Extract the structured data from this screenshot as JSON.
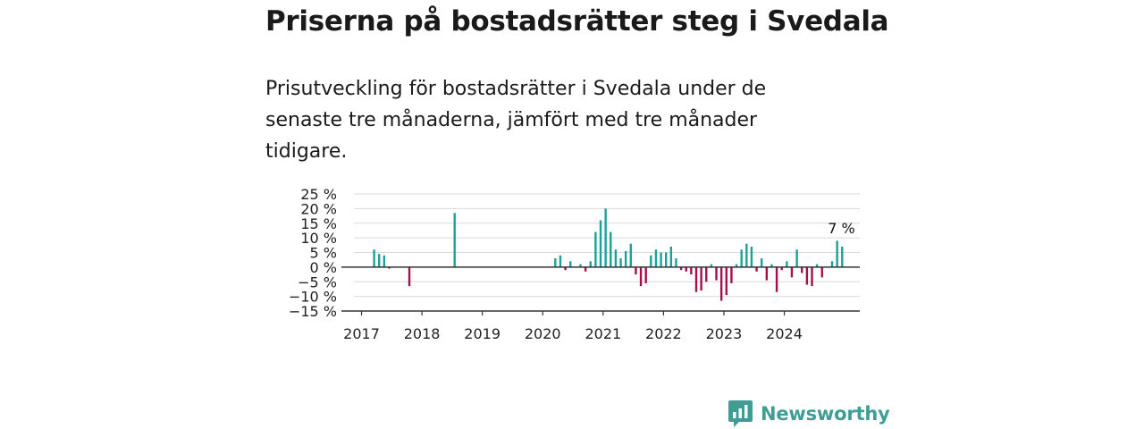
{
  "title": "Priserna på bostadsrätter steg i Svedala",
  "subtitle": "Prisutveckling för bostadsrätter i Svedala under de senaste tre månaderna, jämfört med tre månader tidigare.",
  "brand": {
    "name": "Newsworthy",
    "color": "#3f9d95",
    "icon": "newsworthy-logo-icon"
  },
  "chart_data": {
    "type": "bar",
    "ylim": [
      -15,
      25
    ],
    "y_ticks": [
      25,
      20,
      15,
      10,
      5,
      0,
      -5,
      -10,
      -15
    ],
    "y_tick_labels": [
      "25 %",
      "20 %",
      "15 %",
      "10 %",
      "5 %",
      "0 %",
      "−5 %",
      "−10 %",
      "−15 %"
    ],
    "x_ticks": [
      "2017",
      "2018",
      "2019",
      "2020",
      "2021",
      "2022",
      "2023",
      "2024"
    ],
    "x_range": [
      "2016-09",
      "2025-04"
    ],
    "grid": true,
    "colors": {
      "positive": "#1aa198",
      "negative": "#a50f4e"
    },
    "annotation": {
      "label": "7 %",
      "date": "2024-12",
      "value": 7
    },
    "series": [
      {
        "dates": [
          "2017-03",
          "2017-04",
          "2017-05",
          "2017-06",
          "2017-10",
          "2018-07",
          "2020-03",
          "2020-04",
          "2020-05",
          "2020-06",
          "2020-08",
          "2020-09",
          "2020-10",
          "2020-11",
          "2020-12",
          "2021-01",
          "2021-02",
          "2021-03",
          "2021-04",
          "2021-05",
          "2021-06",
          "2021-07",
          "2021-08",
          "2021-09",
          "2021-10",
          "2021-11",
          "2021-12",
          "2022-01",
          "2022-02",
          "2022-03",
          "2022-04",
          "2022-05",
          "2022-06",
          "2022-07",
          "2022-08",
          "2022-09",
          "2022-10",
          "2022-11",
          "2022-12",
          "2023-01",
          "2023-02",
          "2023-03",
          "2023-04",
          "2023-05",
          "2023-06",
          "2023-07",
          "2023-08",
          "2023-09",
          "2023-10",
          "2023-11",
          "2023-12",
          "2024-01",
          "2024-02",
          "2024-03",
          "2024-04",
          "2024-05",
          "2024-06",
          "2024-07",
          "2024-08",
          "2024-09",
          "2024-10",
          "2024-11",
          "2024-12"
        ],
        "values": [
          6,
          4.5,
          4,
          -0.5,
          -6.5,
          18.5,
          3,
          4,
          -1,
          2,
          1,
          -1.5,
          2,
          12,
          16,
          20,
          12,
          6,
          3,
          5.5,
          8,
          -2.5,
          -6.5,
          -5.5,
          4,
          6,
          5,
          5,
          7,
          3,
          -1,
          -1.5,
          -2.5,
          -8.5,
          -8,
          -5,
          1,
          -4.5,
          -11.5,
          -9.5,
          -5.5,
          1,
          6,
          8,
          7,
          -1.5,
          3,
          -4.5,
          1,
          -8.5,
          -1,
          2,
          -3.5,
          6,
          -2,
          -6,
          -6.5,
          1,
          -3.5,
          0,
          2,
          9,
          7
        ]
      }
    ]
  }
}
